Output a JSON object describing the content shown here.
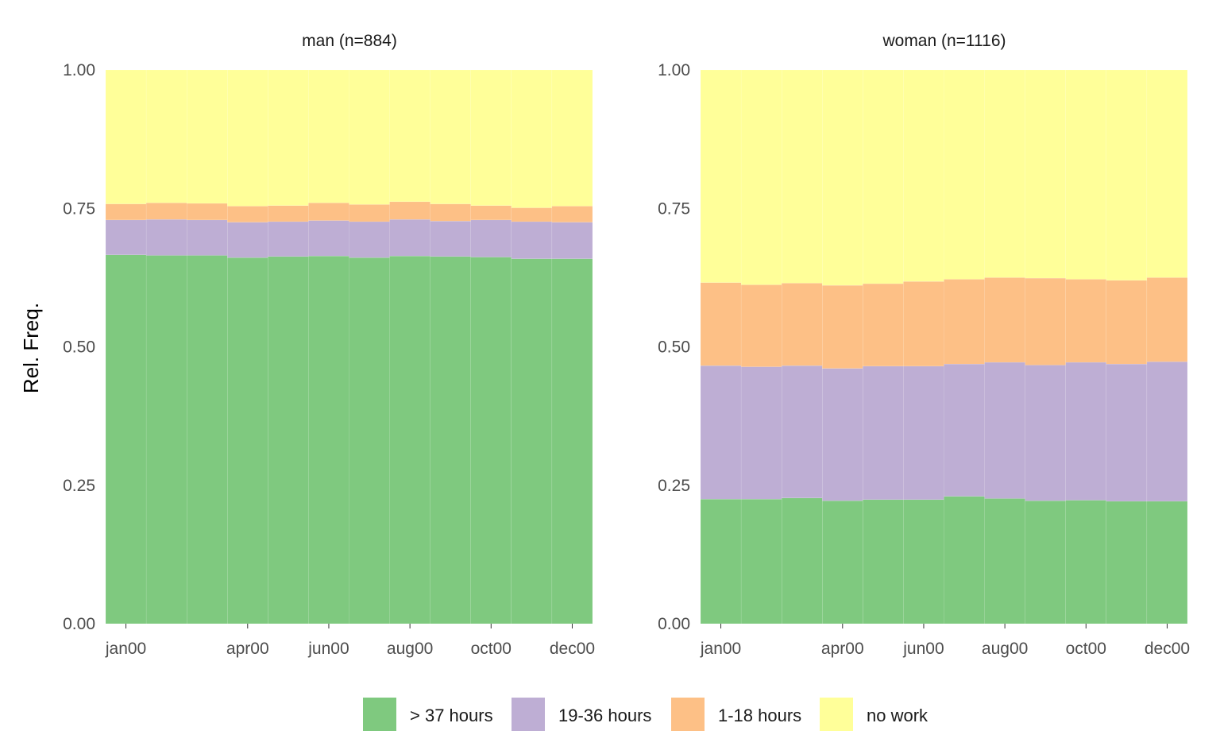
{
  "chart_data": {
    "type": "bar",
    "stacked": true,
    "ylabel": "Rel. Freq.",
    "ylim": [
      0,
      1
    ],
    "yticks": [
      "0.00",
      "0.25",
      "0.50",
      "0.75",
      "1.00"
    ],
    "x_tick_labels": [
      "jan00",
      "apr00",
      "jun00",
      "aug00",
      "oct00",
      "dec00"
    ],
    "x_tick_months": [
      1,
      4,
      6,
      8,
      10,
      12
    ],
    "months": [
      1,
      2,
      3,
      4,
      5,
      6,
      7,
      8,
      9,
      10,
      11,
      12
    ],
    "state_order": [
      "> 37 hours",
      "19-36 hours",
      "1-18 hours",
      "no work"
    ],
    "colors": [
      "#7fc97f",
      "#beaed4",
      "#fdc086",
      "#ffff99"
    ],
    "legend_position": "bottom",
    "grid": false,
    "facets": [
      {
        "title": "man (n=884)",
        "series": [
          {
            "name": "> 37 hours",
            "values": [
              0.666,
              0.665,
              0.665,
              0.661,
              0.663,
              0.664,
              0.661,
              0.664,
              0.663,
              0.662,
              0.659,
              0.659
            ]
          },
          {
            "name": "19-36 hours",
            "values": [
              0.063,
              0.065,
              0.064,
              0.064,
              0.063,
              0.064,
              0.065,
              0.066,
              0.064,
              0.067,
              0.067,
              0.066
            ]
          },
          {
            "name": "1-18 hours",
            "values": [
              0.029,
              0.03,
              0.03,
              0.029,
              0.029,
              0.032,
              0.031,
              0.032,
              0.031,
              0.026,
              0.025,
              0.029
            ]
          },
          {
            "name": "no work",
            "values": [
              0.242,
              0.24,
              0.241,
              0.246,
              0.245,
              0.24,
              0.243,
              0.238,
              0.242,
              0.245,
              0.249,
              0.246
            ]
          }
        ]
      },
      {
        "title": "woman (n=1116)",
        "series": [
          {
            "name": "> 37 hours",
            "values": [
              0.225,
              0.225,
              0.227,
              0.222,
              0.224,
              0.224,
              0.23,
              0.226,
              0.222,
              0.223,
              0.221,
              0.221
            ]
          },
          {
            "name": "19-36 hours",
            "values": [
              0.241,
              0.239,
              0.239,
              0.239,
              0.241,
              0.241,
              0.239,
              0.246,
              0.245,
              0.249,
              0.248,
              0.252
            ]
          },
          {
            "name": "1-18 hours",
            "values": [
              0.15,
              0.148,
              0.149,
              0.15,
              0.149,
              0.153,
              0.153,
              0.153,
              0.157,
              0.15,
              0.151,
              0.152
            ]
          },
          {
            "name": "no work",
            "values": [
              0.384,
              0.388,
              0.385,
              0.389,
              0.386,
              0.382,
              0.378,
              0.375,
              0.376,
              0.378,
              0.38,
              0.375
            ]
          }
        ]
      }
    ]
  }
}
